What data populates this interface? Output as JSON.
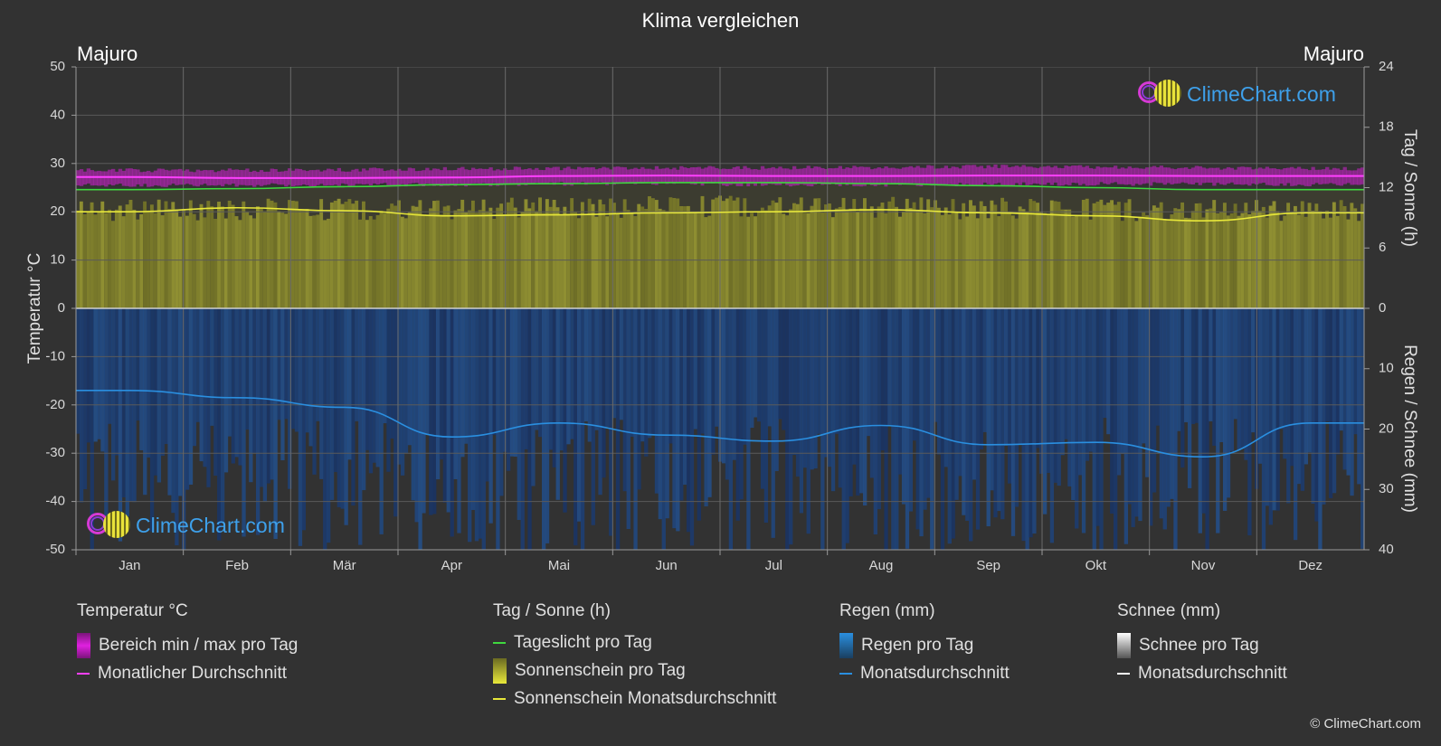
{
  "header": {
    "title": "Klima vergleichen",
    "location_left": "Majuro",
    "location_right": "Majuro"
  },
  "brand": {
    "name": "ClimeChart.com",
    "copyright": "© ClimeChart.com"
  },
  "colors": {
    "background": "#323232",
    "temp_range": "#d020d0",
    "temp_avg": "#ff40ff",
    "daylight": "#3fd83f",
    "sunshine_fill": "#8c8c2c",
    "sunshine_avg": "#e8e83a",
    "rain_fill": "#1f5a8a",
    "rain_avg": "#2a8fe0",
    "snow": "#ffffff",
    "brand": "#3ea0ea"
  },
  "legend": {
    "temperature": {
      "header": "Temperatur °C",
      "items": [
        "Bereich min / max pro Tag",
        "Monatlicher Durchschnitt"
      ]
    },
    "sun": {
      "header": "Tag / Sonne (h)",
      "items": [
        "Tageslicht pro Tag",
        "Sonnenschein pro Tag",
        "Sonnenschein Monatsdurchschnitt"
      ]
    },
    "rain": {
      "header": "Regen (mm)",
      "items": [
        "Regen pro Tag",
        "Monatsdurchschnitt"
      ]
    },
    "snow": {
      "header": "Schnee (mm)",
      "items": [
        "Schnee pro Tag",
        "Monatsdurchschnitt"
      ]
    }
  },
  "chart_data": {
    "type": "area",
    "categories": [
      "Jan",
      "Feb",
      "Mär",
      "Apr",
      "Mai",
      "Jun",
      "Jul",
      "Aug",
      "Sep",
      "Okt",
      "Nov",
      "Dez"
    ],
    "left_axis": {
      "label": "Temperatur °C",
      "range": [
        -50,
        50
      ],
      "ticks": [
        50,
        40,
        30,
        20,
        10,
        0,
        -10,
        -20,
        -30,
        -40,
        -50
      ]
    },
    "right_axis_top": {
      "label": "Tag / Sonne (h)",
      "range": [
        0,
        24
      ],
      "ticks": [
        24,
        18,
        12,
        6,
        0
      ]
    },
    "right_axis_bottom": {
      "label": "Regen / Schnee (mm)",
      "range": [
        0,
        40
      ],
      "ticks": [
        10,
        20,
        30,
        40
      ]
    },
    "grid": true,
    "series": [
      {
        "name": "Monatlicher Durchschnitt",
        "axis": "temperature",
        "values": [
          27.2,
          27.0,
          27.0,
          27.1,
          27.4,
          27.5,
          27.4,
          27.4,
          27.5,
          27.5,
          27.4,
          27.4
        ]
      },
      {
        "name": "Bereich min / max pro Tag",
        "axis": "temperature",
        "min": [
          25.5,
          25.5,
          25.6,
          25.6,
          25.8,
          25.8,
          25.6,
          25.6,
          25.7,
          25.8,
          25.7,
          25.6
        ],
        "max": [
          28.6,
          28.6,
          28.7,
          28.9,
          29.0,
          29.1,
          29.1,
          29.2,
          29.4,
          29.3,
          29.1,
          28.9
        ]
      },
      {
        "name": "Tageslicht pro Tag",
        "axis": "sun",
        "values": [
          11.8,
          11.9,
          12.1,
          12.3,
          12.4,
          12.5,
          12.5,
          12.4,
          12.2,
          12.0,
          11.8,
          11.8
        ]
      },
      {
        "name": "Sonnenschein pro Tag",
        "axis": "sun",
        "values": [
          10.8,
          10.9,
          10.9,
          11.0,
          11.1,
          11.2,
          11.3,
          11.2,
          11.0,
          10.9,
          10.8,
          10.8
        ]
      },
      {
        "name": "Sonnenschein Monatsdurchschnitt",
        "axis": "sun",
        "values": [
          9.6,
          10.0,
          9.7,
          9.2,
          9.3,
          9.5,
          9.6,
          9.8,
          9.5,
          9.2,
          8.7,
          9.5
        ]
      },
      {
        "name": "Regen pro Tag",
        "axis": "rain",
        "values": [
          20,
          20,
          20,
          20,
          20,
          20,
          20,
          20,
          20,
          20,
          20,
          20
        ]
      },
      {
        "name": "Monatsdurchschnitt",
        "axis": "rain",
        "values": [
          13.6,
          14.8,
          16.4,
          21.3,
          19.0,
          21.0,
          22.0,
          19.4,
          22.6,
          22.2,
          24.6,
          19.0
        ]
      }
    ]
  }
}
